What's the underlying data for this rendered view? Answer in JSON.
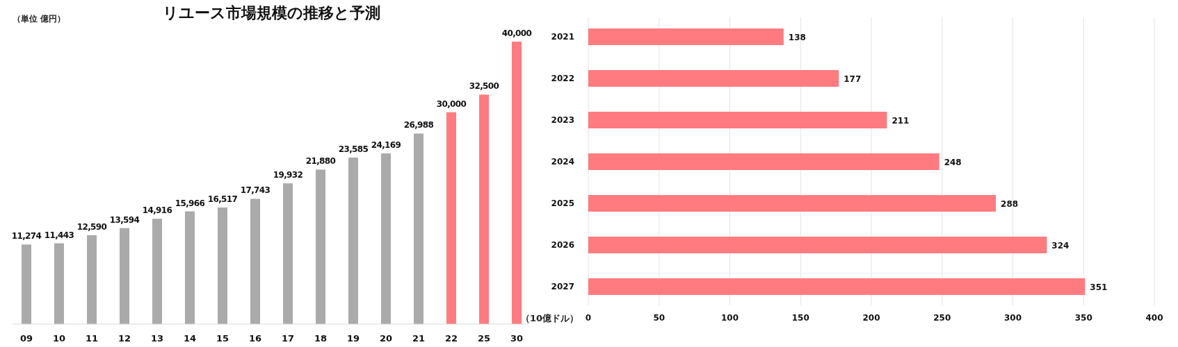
{
  "chart_data": [
    {
      "type": "bar",
      "title": "リユース市場規模の推移と予測",
      "ylabel": "（単位 億円）",
      "categories": [
        "09",
        "10",
        "11",
        "12",
        "13",
        "14",
        "15",
        "16",
        "17",
        "18",
        "19",
        "20",
        "21",
        "22",
        "25",
        "30"
      ],
      "values": [
        11274,
        11443,
        12590,
        13594,
        14916,
        15966,
        16517,
        17743,
        19932,
        21880,
        23585,
        24169,
        26988,
        30000,
        32500,
        40000
      ],
      "colors": [
        "#aaaaaa",
        "#aaaaaa",
        "#aaaaaa",
        "#aaaaaa",
        "#aaaaaa",
        "#aaaaaa",
        "#aaaaaa",
        "#aaaaaa",
        "#aaaaaa",
        "#aaaaaa",
        "#aaaaaa",
        "#aaaaaa",
        "#aaaaaa",
        "#ff7b80",
        "#ff7b80",
        "#ff7b80"
      ],
      "value_labels": [
        "11,274",
        "11,443",
        "12,590",
        "13,594",
        "14,916",
        "15,966",
        "16,517",
        "17,743",
        "19,932",
        "21,880",
        "23,585",
        "24,169",
        "26,988",
        "30,000",
        "32,500",
        "40,000"
      ]
    },
    {
      "type": "bar",
      "orientation": "horizontal",
      "xlabel": "（10億ドル）",
      "categories": [
        "2021",
        "2022",
        "2023",
        "2024",
        "2025",
        "2026",
        "2027"
      ],
      "values": [
        138,
        177,
        211,
        248,
        288,
        324,
        351
      ],
      "color": "#ff7b80",
      "xlim": [
        0,
        400
      ],
      "xticks": [
        0,
        50,
        100,
        150,
        200,
        250,
        300,
        350,
        400
      ],
      "grid": "x",
      "data_labels": true
    }
  ]
}
